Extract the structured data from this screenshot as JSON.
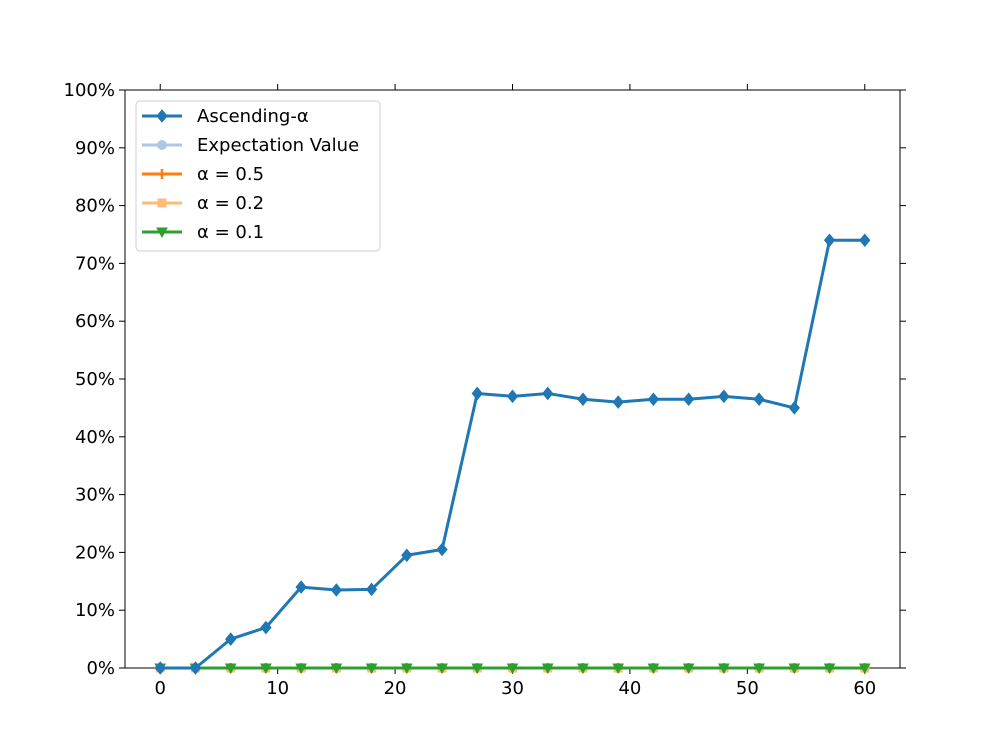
{
  "chart_data": {
    "type": "line",
    "title": "",
    "xlabel": "",
    "ylabel": "",
    "xlim": [
      -3,
      63
    ],
    "ylim": [
      0,
      1
    ],
    "x_ticks": [
      0,
      10,
      20,
      30,
      40,
      50,
      60
    ],
    "x_tick_labels": [
      "0",
      "10",
      "20",
      "30",
      "40",
      "50",
      "60"
    ],
    "y_ticks": [
      0,
      0.1,
      0.2,
      0.3,
      0.4,
      0.5,
      0.6,
      0.7,
      0.8,
      0.9,
      1.0
    ],
    "y_tick_labels": [
      "0%",
      "10%",
      "20%",
      "30%",
      "40%",
      "50%",
      "60%",
      "70%",
      "80%",
      "90%",
      "100%"
    ],
    "grid": false,
    "legend_position": "upper-left",
    "x": [
      0,
      3,
      6,
      9,
      12,
      15,
      18,
      21,
      24,
      27,
      30,
      33,
      36,
      39,
      42,
      45,
      48,
      51,
      54,
      57,
      60
    ],
    "series": [
      {
        "name": "Ascending-α",
        "color": "#1f77b4",
        "marker": "diamond",
        "values": [
          0.0,
          0.0,
          0.05,
          0.07,
          0.14,
          0.135,
          0.136,
          0.195,
          0.205,
          0.475,
          0.47,
          0.475,
          0.465,
          0.46,
          0.465,
          0.465,
          0.47,
          0.465,
          0.45,
          0.74,
          0.74
        ]
      },
      {
        "name": "Expectation Value",
        "color": "#aec7e8",
        "marker": "circle",
        "values": [
          0,
          0,
          0,
          0,
          0,
          0,
          0,
          0,
          0,
          0,
          0,
          0,
          0,
          0,
          0,
          0,
          0,
          0,
          0,
          0,
          0
        ]
      },
      {
        "name": "α = 0.5",
        "color": "#ff7f0e",
        "marker": "plus",
        "values": [
          0,
          0,
          0,
          0,
          0,
          0,
          0,
          0,
          0,
          0,
          0,
          0,
          0,
          0,
          0,
          0,
          0,
          0,
          0,
          0,
          0
        ]
      },
      {
        "name": "α = 0.2",
        "color": "#ffbb78",
        "marker": "square",
        "values": [
          0,
          0,
          0,
          0,
          0,
          0,
          0,
          0,
          0,
          0,
          0,
          0,
          0,
          0,
          0,
          0,
          0,
          0,
          0,
          0,
          0
        ]
      },
      {
        "name": "α = 0.1",
        "color": "#2ca02c",
        "marker": "triangle-down",
        "values": [
          0,
          0,
          0,
          0,
          0,
          0,
          0,
          0,
          0,
          0,
          0,
          0,
          0,
          0,
          0,
          0,
          0,
          0,
          0,
          0,
          0
        ]
      }
    ]
  }
}
